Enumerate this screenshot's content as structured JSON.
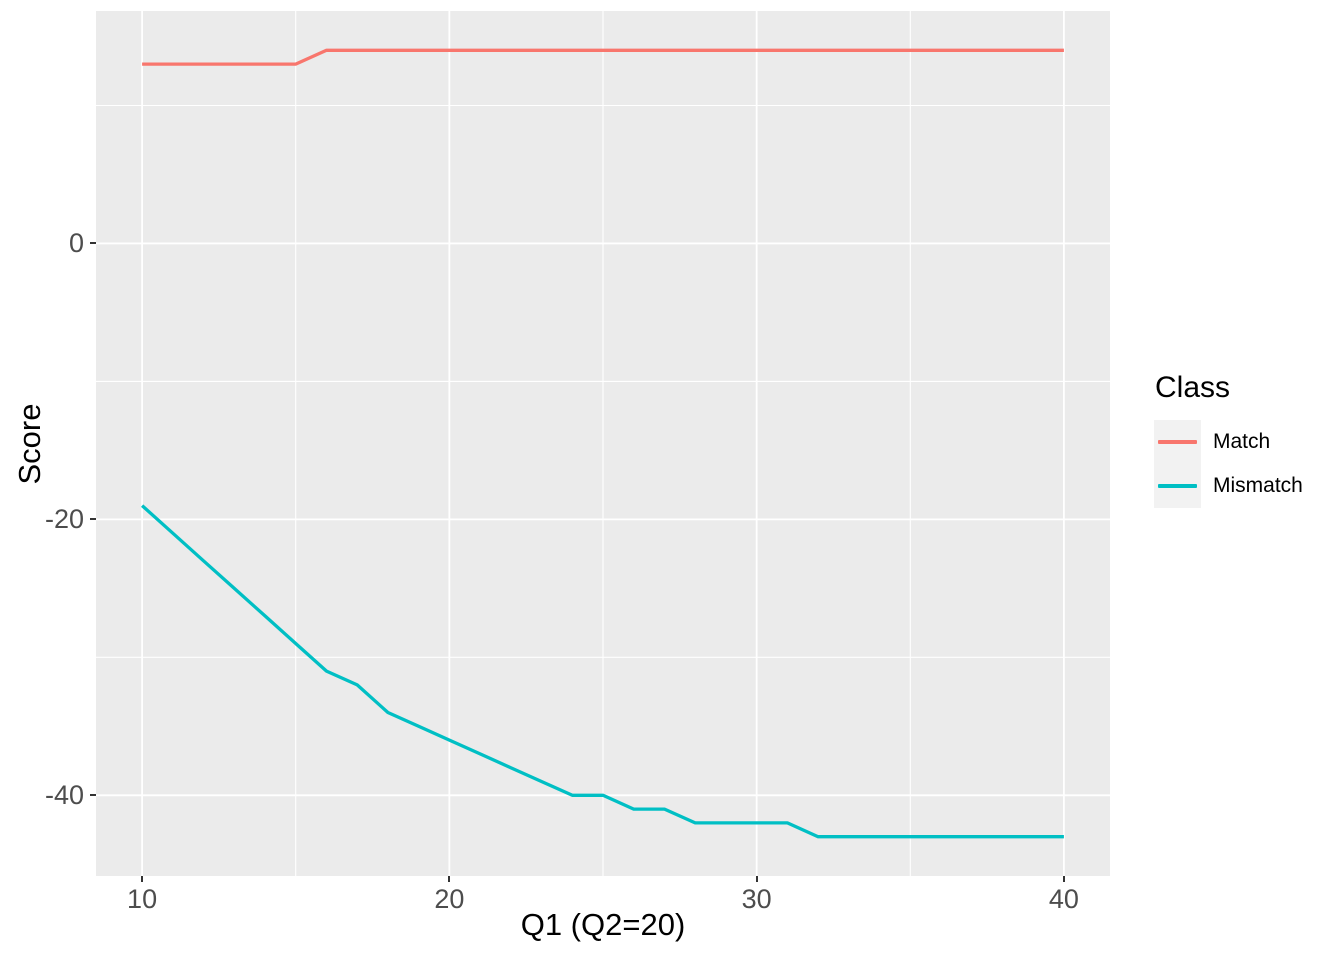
{
  "chart_data": {
    "type": "line",
    "title": "",
    "xlabel": "Q1 (Q2=20)",
    "ylabel": "Score",
    "legend_title": "Class",
    "legend_position": "right",
    "grid": true,
    "panel_background": "#EBEBEB",
    "grid_color": "#FFFFFF",
    "tick_label_color": "#4D4D4D",
    "axis_title_color": "#000000",
    "tick_mark_color": "#333333",
    "legend_key_background": "#F2F2F2",
    "xlim": [
      8.5,
      41.5
    ],
    "ylim": [
      -45.85,
      16.85
    ],
    "x_ticks": [
      10,
      20,
      30,
      40
    ],
    "x_tick_labels": [
      "10",
      "20",
      "30",
      "40"
    ],
    "x_minor_ticks": [
      15,
      25,
      35
    ],
    "y_ticks": [
      0,
      -20,
      -40
    ],
    "y_tick_labels": [
      "0",
      "-20",
      "-40"
    ],
    "y_minor_ticks": [
      10,
      -10,
      -30
    ],
    "x": [
      10,
      11,
      12,
      13,
      14,
      15,
      16,
      17,
      18,
      19,
      20,
      21,
      22,
      23,
      24,
      25,
      26,
      27,
      28,
      29,
      30,
      31,
      32,
      33,
      34,
      35,
      36,
      37,
      38,
      39,
      40
    ],
    "series": [
      {
        "name": "Match",
        "color": "#F8766D",
        "values": [
          13,
          13,
          13,
          13,
          13,
          13,
          14,
          14,
          14,
          14,
          14,
          14,
          14,
          14,
          14,
          14,
          14,
          14,
          14,
          14,
          14,
          14,
          14,
          14,
          14,
          14,
          14,
          14,
          14,
          14,
          14
        ]
      },
      {
        "name": "Mismatch",
        "color": "#00BFC4",
        "values": [
          -19,
          -21,
          -23,
          -25,
          -27,
          -29,
          -31,
          -32,
          -34,
          -35,
          -36,
          -37,
          -38,
          -39,
          -40,
          -40,
          -41,
          -41,
          -42,
          -42,
          -42,
          -42,
          -43,
          -43,
          -43,
          -43,
          -43,
          -43,
          -43,
          -43,
          -43
        ]
      }
    ]
  }
}
